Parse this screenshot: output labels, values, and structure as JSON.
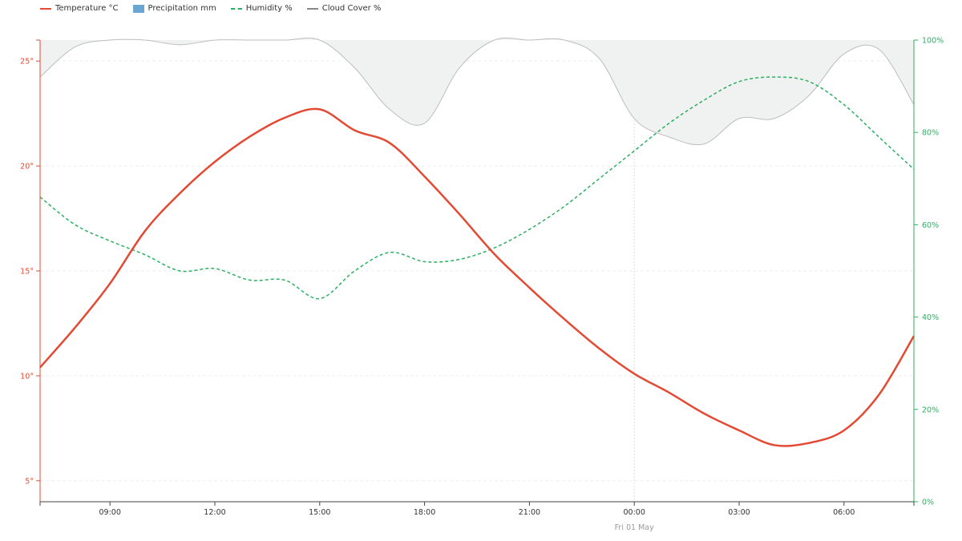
{
  "legend": [
    {
      "label": "Temperature °C",
      "kind": "line",
      "color": "#e34a33"
    },
    {
      "label": "Precipitation mm",
      "kind": "rect",
      "color": "#6aa6d1"
    },
    {
      "label": "Humidity %",
      "kind": "dash",
      "color": "#2bb062"
    },
    {
      "label": "Cloud Cover %",
      "kind": "line",
      "color": "#888888"
    }
  ],
  "colors": {
    "temperature": "#e34a33",
    "humidity": "#2bb062",
    "cloud_stroke": "#bdbdbd",
    "cloud_fill": "#f0f1f1",
    "grid": "#eeeeee",
    "axis_x_text": "#333333",
    "date_label": "#999999"
  },
  "chart_data": {
    "type": "line",
    "x_start": "07:00",
    "x_end": "08:00",
    "x_tick_labels": [
      "09:00",
      "12:00",
      "15:00",
      "18:00",
      "21:00",
      "00:00",
      "03:00",
      "06:00"
    ],
    "x_tick_hours": [
      9,
      12,
      15,
      18,
      21,
      24,
      27,
      30
    ],
    "date_marker": {
      "label": "Fri 01 May",
      "hour": 24
    },
    "y_left": {
      "label": "",
      "range": [
        4,
        26
      ],
      "ticks": [
        5,
        10,
        15,
        20,
        25
      ],
      "tick_labels": [
        "5°",
        "10°",
        "15°",
        "20°",
        "25°"
      ]
    },
    "y_right": {
      "label": "",
      "range": [
        0,
        100
      ],
      "ticks": [
        0,
        20,
        40,
        60,
        80,
        100
      ],
      "tick_labels": [
        "0%",
        "20%",
        "40%",
        "60%",
        "80%",
        "100%"
      ]
    },
    "grid": true,
    "legend_position": "top-left",
    "series": [
      {
        "name": "Temperature °C",
        "axis": "left",
        "style": "solid",
        "points": [
          [
            7,
            10.4
          ],
          [
            8,
            12.3
          ],
          [
            9,
            14.4
          ],
          [
            10,
            16.9
          ],
          [
            11,
            18.7
          ],
          [
            12,
            20.2
          ],
          [
            13,
            21.4
          ],
          [
            14,
            22.3
          ],
          [
            15,
            22.7
          ],
          [
            16,
            21.7
          ],
          [
            17,
            21.1
          ],
          [
            18,
            19.5
          ],
          [
            19,
            17.7
          ],
          [
            20,
            15.8
          ],
          [
            21,
            14.2
          ],
          [
            22,
            12.7
          ],
          [
            23,
            11.3
          ],
          [
            24,
            10.1
          ],
          [
            25,
            9.2
          ],
          [
            26,
            8.2
          ],
          [
            27,
            7.4
          ],
          [
            28,
            6.7
          ],
          [
            29,
            6.8
          ],
          [
            30,
            7.4
          ],
          [
            31,
            9.1
          ],
          [
            32,
            11.9
          ]
        ]
      },
      {
        "name": "Humidity %",
        "axis": "right",
        "style": "dashed",
        "points": [
          [
            7,
            66
          ],
          [
            8,
            60
          ],
          [
            9,
            56.5
          ],
          [
            10,
            53.5
          ],
          [
            11,
            50
          ],
          [
            12,
            50.5
          ],
          [
            13,
            48
          ],
          [
            14,
            48
          ],
          [
            15,
            44
          ],
          [
            16,
            50
          ],
          [
            17,
            54
          ],
          [
            18,
            52
          ],
          [
            19,
            52.5
          ],
          [
            20,
            55
          ],
          [
            21,
            59
          ],
          [
            22,
            64
          ],
          [
            23,
            70
          ],
          [
            24,
            76
          ],
          [
            25,
            82
          ],
          [
            26,
            87
          ],
          [
            27,
            91
          ],
          [
            28,
            92
          ],
          [
            29,
            91
          ],
          [
            30,
            86
          ],
          [
            31,
            79
          ],
          [
            32,
            72
          ]
        ]
      },
      {
        "name": "Cloud Cover %",
        "axis": "right",
        "style": "area",
        "points": [
          [
            7,
            92
          ],
          [
            8,
            98.5
          ],
          [
            9,
            100
          ],
          [
            10,
            100
          ],
          [
            11,
            99
          ],
          [
            12,
            100
          ],
          [
            13,
            100
          ],
          [
            14,
            100
          ],
          [
            15,
            100
          ],
          [
            16,
            94
          ],
          [
            17,
            85
          ],
          [
            18,
            82
          ],
          [
            19,
            94
          ],
          [
            20,
            100
          ],
          [
            21,
            100
          ],
          [
            22,
            100
          ],
          [
            23,
            96
          ],
          [
            24,
            83
          ],
          [
            25,
            79
          ],
          [
            26,
            77.5
          ],
          [
            27,
            83
          ],
          [
            28,
            83
          ],
          [
            29,
            88
          ],
          [
            30,
            97
          ],
          [
            31,
            98
          ],
          [
            32,
            86
          ]
        ]
      },
      {
        "name": "Precipitation mm",
        "axis": "left",
        "style": "bar",
        "points": []
      }
    ]
  }
}
